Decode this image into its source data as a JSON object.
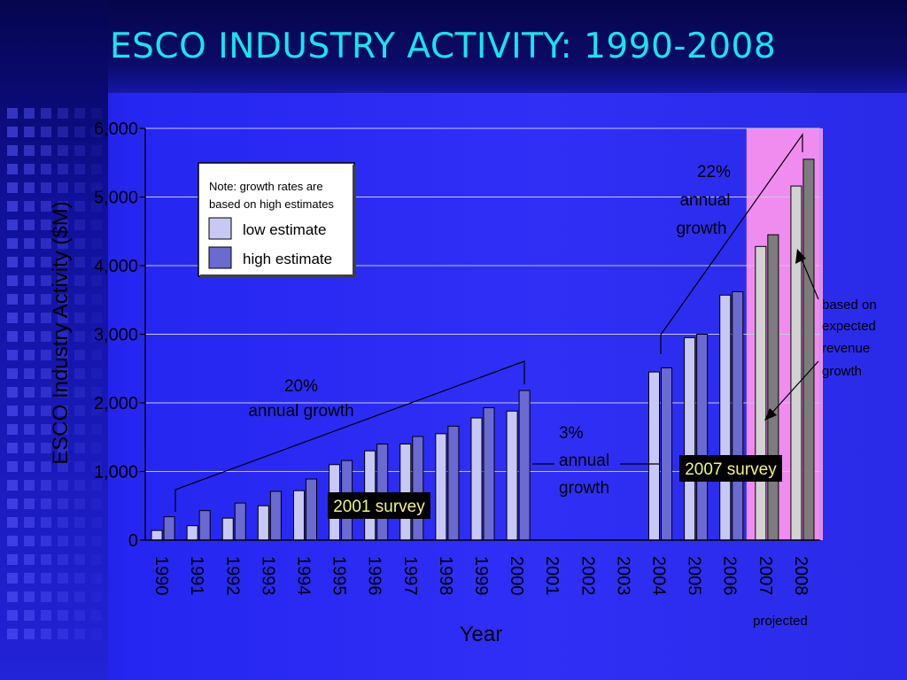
{
  "title": "ESCO INDUSTRY ACTIVITY: 1990-2008",
  "chart_data": {
    "type": "bar",
    "xlabel": "Year",
    "ylabel": "ESCO Industry Activity ($M)",
    "ylim": [
      0,
      6000
    ],
    "yticks": [
      "0",
      "1,000",
      "2,000",
      "3,000",
      "4,000",
      "5,000",
      "6,000"
    ],
    "grid": true,
    "categories": [
      "1990",
      "1991",
      "1992",
      "1993",
      "1994",
      "1995",
      "1996",
      "1997",
      "1998",
      "1999",
      "2000",
      "2001",
      "2002",
      "2003",
      "2004",
      "2005",
      "2006",
      "2007",
      "2008"
    ],
    "series": [
      {
        "name": "low estimate",
        "values": [
          140,
          210,
          320,
          500,
          720,
          1100,
          1300,
          1400,
          1550,
          1780,
          1880,
          null,
          null,
          null,
          2450,
          2950,
          3570,
          4280,
          5160
        ]
      },
      {
        "name": "high estimate",
        "values": [
          340,
          430,
          540,
          710,
          890,
          1160,
          1400,
          1510,
          1660,
          1930,
          2180,
          null,
          null,
          null,
          2510,
          3000,
          3620,
          4450,
          5550
        ]
      }
    ],
    "projected_label": "projected",
    "projected_years": [
      "2007",
      "2008"
    ],
    "legend": {
      "note_line1": "Note: growth rates are",
      "note_line2": "based on high estimates",
      "items": [
        "low estimate",
        "high estimate"
      ],
      "placement": "top-left"
    },
    "annotations": {
      "growth_20": [
        "20%",
        "annual growth"
      ],
      "growth_3": [
        "3%",
        "annual",
        "growth"
      ],
      "growth_22": [
        "22%",
        "annual",
        "growth"
      ],
      "survey_2001": "2001 survey",
      "survey_2007": "2007 survey",
      "expected": [
        "based on",
        "expected",
        "revenue",
        "growth"
      ]
    }
  },
  "colors": {
    "title": "#12e8f0",
    "low": "#c8c8f4",
    "high": "#6a6ad0",
    "projected_low": "#d2d2d2",
    "projected_high": "#7c7c7c",
    "projected_band": "#f08cf0",
    "survey_box": "#000000",
    "survey_text": "#f4f480"
  }
}
